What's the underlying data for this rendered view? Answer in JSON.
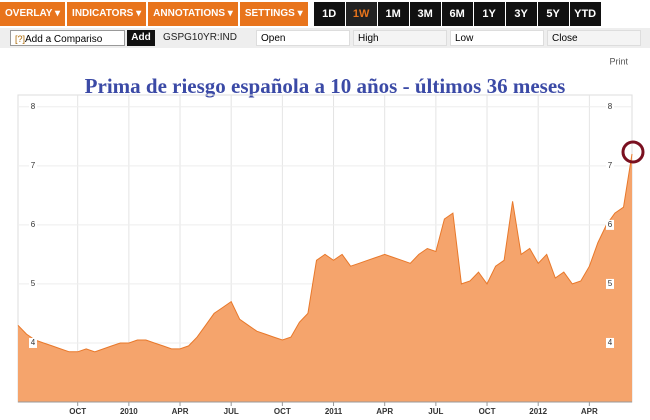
{
  "toolbar": {
    "menus": [
      "OVERLAY ▾",
      "INDICATORS ▾",
      "ANNOTATIONS ▾",
      "SETTINGS ▾"
    ],
    "ranges": [
      "1D",
      "1W",
      "1M",
      "3M",
      "6M",
      "1Y",
      "3Y",
      "5Y",
      "YTD"
    ]
  },
  "compare_bar": {
    "help": "[?]",
    "input": "Add a Compariso",
    "button": "Add",
    "ticker": "GSPG10YR:IND",
    "fields": [
      "Open",
      "High",
      "Low",
      "Close"
    ]
  },
  "print": "Print",
  "chart_data": {
    "type": "area",
    "title": "Prima de riesgo española a 10 años - últimos 36 meses",
    "categories": [
      null,
      null,
      null,
      null,
      null,
      null,
      null,
      "OCT",
      null,
      null,
      null,
      null,
      null,
      "2010",
      null,
      null,
      null,
      null,
      null,
      "APR",
      null,
      null,
      null,
      null,
      null,
      "JUL",
      null,
      null,
      null,
      null,
      null,
      "OCT",
      null,
      null,
      null,
      null,
      null,
      "2011",
      null,
      null,
      null,
      null,
      null,
      "APR",
      null,
      null,
      null,
      null,
      null,
      "JUL",
      null,
      null,
      null,
      null,
      null,
      "OCT",
      null,
      null,
      null,
      null,
      null,
      "2012",
      null,
      null,
      null,
      null,
      null,
      "APR",
      null,
      null,
      null,
      null,
      null
    ],
    "values": [
      4.3,
      4.15,
      4.05,
      4.0,
      3.95,
      3.9,
      3.85,
      3.85,
      3.9,
      3.85,
      3.9,
      3.95,
      4.0,
      4.0,
      4.05,
      4.05,
      4.0,
      3.95,
      3.9,
      3.9,
      3.95,
      4.1,
      4.3,
      4.5,
      4.6,
      4.7,
      4.4,
      4.3,
      4.2,
      4.15,
      4.1,
      4.05,
      4.1,
      4.35,
      4.5,
      5.4,
      5.5,
      5.4,
      5.5,
      5.3,
      5.35,
      5.4,
      5.45,
      5.5,
      5.45,
      5.4,
      5.35,
      5.5,
      5.6,
      5.55,
      6.1,
      6.2,
      5.0,
      5.05,
      5.2,
      5.0,
      5.3,
      5.4,
      6.4,
      5.5,
      5.6,
      5.35,
      5.5,
      5.1,
      5.2,
      5.0,
      5.05,
      5.3,
      5.7,
      6.0,
      6.2,
      6.3,
      7.2
    ],
    "color": "#f5a46c",
    "line_color": "#e8782a",
    "ylim": [
      3,
      8.2
    ],
    "yticks": [
      4,
      5,
      6,
      7,
      8
    ],
    "grid": true
  }
}
